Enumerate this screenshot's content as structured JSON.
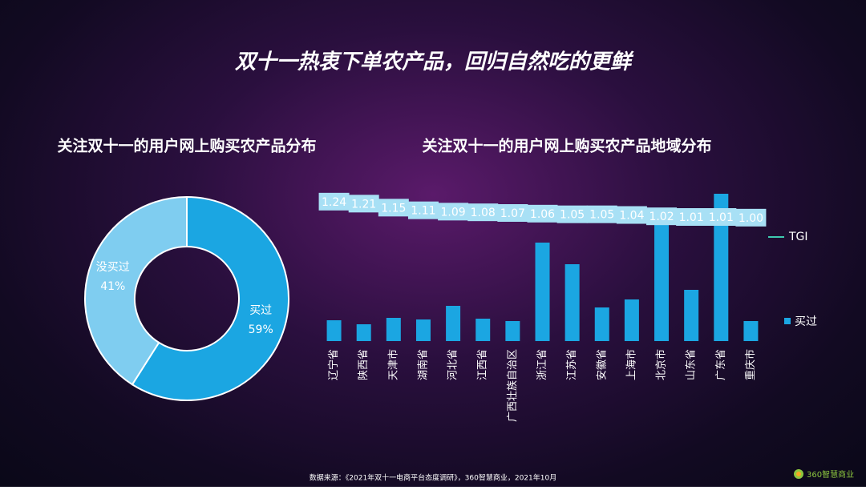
{
  "title": "双十一热衷下单农产品，回归自然吃的更鲜",
  "chart_data": [
    {
      "type": "donut",
      "title": "关注双十一的用户网上购买农产品分布",
      "categories": [
        "买过",
        "没买过"
      ],
      "values": [
        59,
        41
      ],
      "value_labels": [
        "59%",
        "41%"
      ],
      "colors": [
        "#1ba6e2",
        "#7fcdf0"
      ]
    },
    {
      "type": "bar",
      "title": "关注双十一的用户网上购买农产品地域分布",
      "categories": [
        "辽宁省",
        "陕西省",
        "天津市",
        "湖南省",
        "河北省",
        "江西省",
        "广西壮族自治区",
        "浙江省",
        "江苏省",
        "安徽省",
        "上海市",
        "北京市",
        "山东省",
        "广东省",
        "重庆市"
      ],
      "ylim": [
        0,
        200
      ],
      "y2lim": [
        -0.85,
        1.55
      ],
      "legend": "right",
      "series": [
        {
          "name": "买过",
          "color": "#1ba6e2",
          "values": [
            26,
            21,
            29,
            27,
            44,
            28,
            25,
            123,
            96,
            42,
            52,
            156,
            64,
            184,
            25
          ]
        },
        {
          "name": "TGI",
          "color": "#3ec9b0",
          "axis": "y2",
          "values": [
            1.24,
            1.21,
            1.15,
            1.11,
            1.09,
            1.08,
            1.07,
            1.06,
            1.05,
            1.05,
            1.04,
            1.02,
            1.01,
            1.01,
            1.0
          ],
          "value_labels": [
            "1.24",
            "1.21",
            "1.15",
            "1.11",
            "1.09",
            "1.08",
            "1.07",
            "1.06",
            "1.05",
            "1.05",
            "1.04",
            "1.02",
            "1.01",
            "1.01",
            "1.00"
          ]
        }
      ]
    }
  ],
  "source": "数据来源：《2021年双十一电商平台态度调研》，360智慧商业，2021年10月",
  "logo": "360智慧商业"
}
